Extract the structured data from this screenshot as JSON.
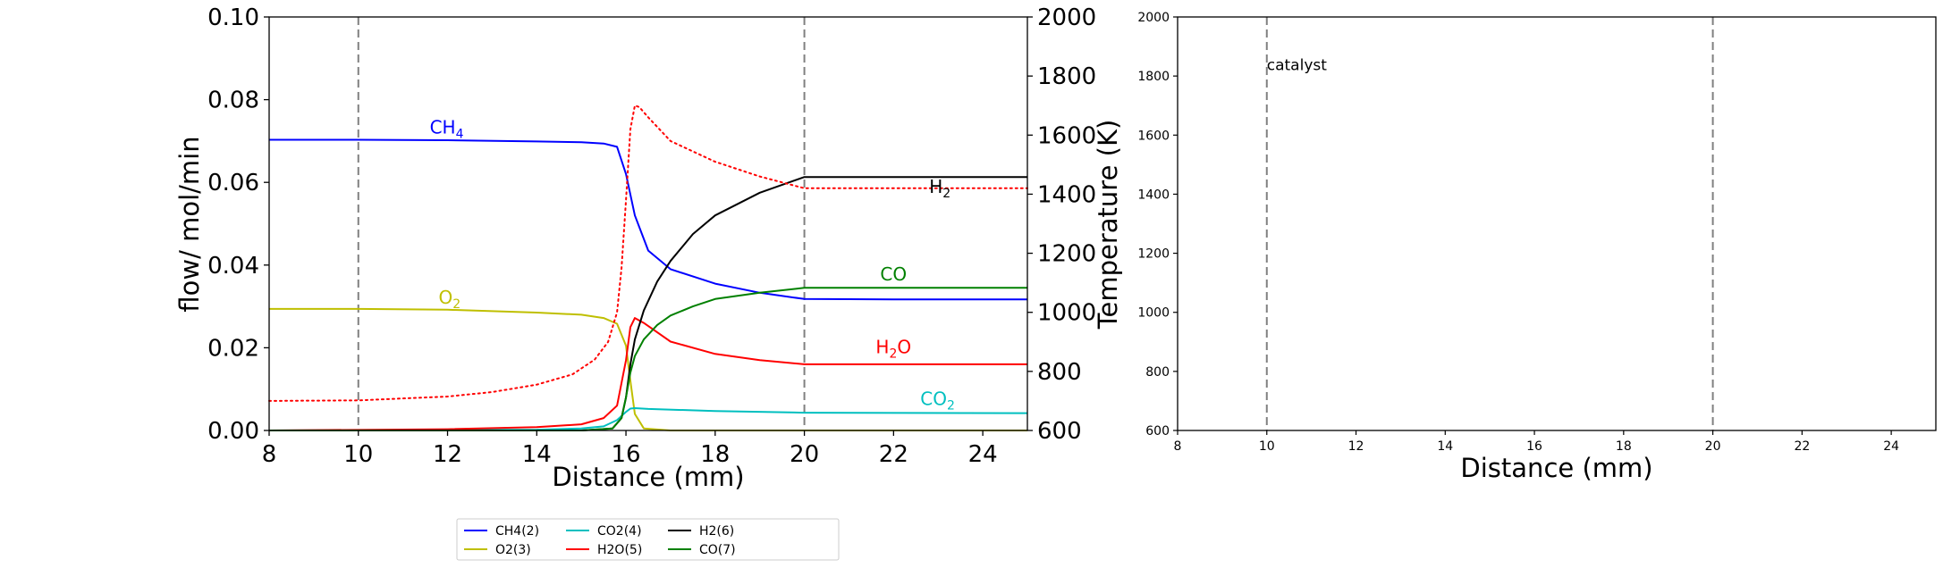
{
  "chart_data": [
    {
      "type": "line",
      "xlabel": "Distance (mm)",
      "ylabel": "flow/ mol/min",
      "y2label": "Temperature (K)",
      "xlim": [
        8,
        25
      ],
      "ylim": [
        0,
        0.1
      ],
      "y2lim": [
        600,
        2000
      ],
      "xticks": [
        "8",
        "10",
        "12",
        "14",
        "16",
        "18",
        "20",
        "22",
        "24"
      ],
      "yticks": [
        "0.00",
        "0.02",
        "0.04",
        "0.06",
        "0.08",
        "0.10"
      ],
      "y2ticks": [
        "600",
        "800",
        "1000",
        "1200",
        "1400",
        "1600",
        "1800",
        "2000"
      ],
      "vlines": [
        10,
        20
      ],
      "grid": false,
      "series": [
        {
          "name": "CH4(2)",
          "color": "#0000ff",
          "x": [
            8,
            10,
            12,
            14,
            15,
            15.5,
            15.8,
            16,
            16.2,
            16.5,
            17,
            18,
            19,
            20,
            22,
            25
          ],
          "y": [
            0.0703,
            0.0703,
            0.0702,
            0.0699,
            0.0697,
            0.0694,
            0.0686,
            0.062,
            0.052,
            0.0435,
            0.039,
            0.0355,
            0.0333,
            0.0318,
            0.0317,
            0.0317
          ]
        },
        {
          "name": "O2(3)",
          "color": "#bfbf00",
          "x": [
            8,
            10,
            12,
            14,
            15,
            15.5,
            15.8,
            16,
            16.1,
            16.2,
            16.4,
            17,
            20,
            25
          ],
          "y": [
            0.0294,
            0.0294,
            0.0292,
            0.0285,
            0.028,
            0.0272,
            0.0258,
            0.0205,
            0.012,
            0.004,
            0.0005,
            0.0,
            0.0,
            0.0
          ]
        },
        {
          "name": "CO2(4)",
          "color": "#00bfbf",
          "x": [
            8,
            14,
            15,
            15.5,
            15.8,
            16,
            16.1,
            16.2,
            16.5,
            18,
            20,
            25
          ],
          "y": [
            0.0,
            0.0002,
            0.0005,
            0.001,
            0.0025,
            0.0045,
            0.0053,
            0.0054,
            0.0052,
            0.0047,
            0.0043,
            0.0042
          ]
        },
        {
          "name": "H2O(5)",
          "color": "#ff0000",
          "x": [
            8,
            12,
            14,
            15,
            15.5,
            15.8,
            16,
            16.1,
            16.2,
            16.4,
            17,
            18,
            19,
            20,
            25
          ],
          "y": [
            0.0,
            0.0003,
            0.0008,
            0.0015,
            0.003,
            0.006,
            0.017,
            0.025,
            0.0272,
            0.026,
            0.0215,
            0.0185,
            0.017,
            0.016,
            0.016
          ]
        },
        {
          "name": "H2(6)",
          "color": "#000000",
          "x": [
            8,
            15,
            15.7,
            15.9,
            16,
            16.1,
            16.2,
            16.4,
            16.7,
            17,
            17.5,
            18,
            19,
            20,
            25
          ],
          "y": [
            0.0,
            0.0,
            0.0005,
            0.003,
            0.008,
            0.016,
            0.022,
            0.029,
            0.036,
            0.041,
            0.0475,
            0.052,
            0.0575,
            0.0613,
            0.0613
          ]
        },
        {
          "name": "CO(7)",
          "color": "#008000",
          "x": [
            8,
            15,
            15.7,
            15.9,
            16,
            16.1,
            16.2,
            16.4,
            16.7,
            17,
            17.5,
            18,
            19,
            20,
            25
          ],
          "y": [
            0.0,
            0.0,
            0.0005,
            0.003,
            0.008,
            0.014,
            0.018,
            0.022,
            0.0255,
            0.0278,
            0.03,
            0.0318,
            0.0333,
            0.0345,
            0.0345
          ]
        },
        {
          "name": "",
          "color": "#ff0000",
          "style": "dotted",
          "axis": "right",
          "x": [
            8,
            10,
            12,
            13,
            14,
            14.8,
            15.3,
            15.6,
            15.8,
            15.9,
            16,
            16.1,
            16.2,
            16.3,
            16.5,
            17,
            18,
            19,
            20,
            25
          ],
          "y": [
            700,
            702,
            715,
            730,
            755,
            790,
            840,
            900,
            1000,
            1150,
            1380,
            1620,
            1700,
            1695,
            1660,
            1580,
            1510,
            1460,
            1420,
            1420
          ]
        }
      ],
      "annotations": [
        {
          "text": "CH",
          "sub": "4",
          "x": 11.6,
          "y": 0.0718,
          "color": "#0000ff"
        },
        {
          "text": "O",
          "sub": "2",
          "x": 11.8,
          "y": 0.0307,
          "color": "#bfbf00"
        },
        {
          "text": "H",
          "sub": "2",
          "x": 22.8,
          "y": 0.0575,
          "color": "#000000"
        },
        {
          "text": "CO",
          "sub": "",
          "x": 21.7,
          "y": 0.0363,
          "color": "#008000"
        },
        {
          "text": "H",
          "sub": "2",
          "tail": "O",
          "x": 21.6,
          "y": 0.0187,
          "color": "#ff0000"
        },
        {
          "text": "CO",
          "sub": "2",
          "x": 22.6,
          "y": 0.0062,
          "color": "#00bfbf"
        }
      ]
    },
    {
      "type": "line",
      "xlabel": "Distance (mm)",
      "ylabel": "",
      "xlim": [
        8,
        25
      ],
      "ylim": [
        600,
        2000
      ],
      "xticks": [
        "8",
        "10",
        "12",
        "14",
        "16",
        "18",
        "20",
        "22",
        "24"
      ],
      "yticks": [
        "600",
        "800",
        "1000",
        "1200",
        "1400",
        "1600",
        "1800",
        "2000"
      ],
      "vlines": [
        10,
        20
      ],
      "grid": false,
      "series": [],
      "annotations": [
        {
          "text": "catalyst",
          "x": 10,
          "y": 1820,
          "color": "#000000"
        }
      ]
    }
  ],
  "legend": {
    "entries": [
      {
        "label": "CH4(2)",
        "color": "#0000ff"
      },
      {
        "label": "O2(3)",
        "color": "#bfbf00"
      },
      {
        "label": "CO2(4)",
        "color": "#00bfbf"
      },
      {
        "label": "H2O(5)",
        "color": "#ff0000"
      },
      {
        "label": "H2(6)",
        "color": "#000000"
      },
      {
        "label": "CO(7)",
        "color": "#008000"
      }
    ]
  }
}
